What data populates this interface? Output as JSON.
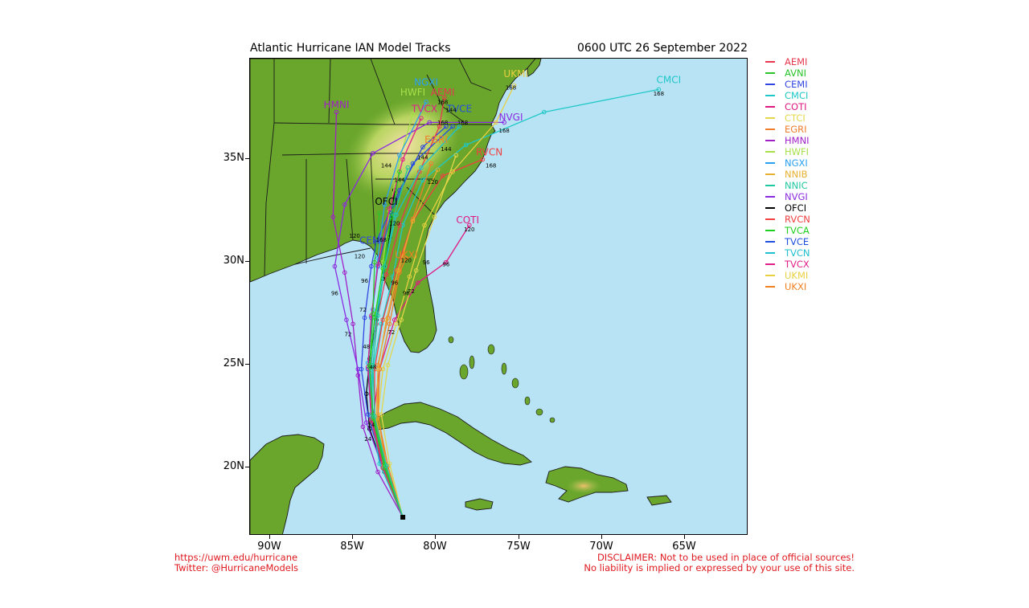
{
  "title": "Atlantic Hurricane IAN Model Tracks",
  "timestamp": "0600 UTC 26 September 2022",
  "axes": {
    "x_ticks": [
      "90W",
      "85W",
      "80W",
      "75W",
      "70W",
      "65W"
    ],
    "y_ticks": [
      "35N",
      "30N",
      "25N",
      "20N"
    ]
  },
  "legend": [
    {
      "name": "AEMI",
      "color": "#e8384f"
    },
    {
      "name": "AVNI",
      "color": "#2bc42b"
    },
    {
      "name": "CEMI",
      "color": "#3046e0"
    },
    {
      "name": "CMCI",
      "color": "#1fc8c8"
    },
    {
      "name": "COTI",
      "color": "#e01980"
    },
    {
      "name": "CTCI",
      "color": "#e3d84a"
    },
    {
      "name": "EGRI",
      "color": "#f07d2b"
    },
    {
      "name": "HMNI",
      "color": "#a020c8"
    },
    {
      "name": "HWFI",
      "color": "#a8e04a"
    },
    {
      "name": "NGXI",
      "color": "#2aa0f0"
    },
    {
      "name": "NNIB",
      "color": "#e8b030"
    },
    {
      "name": "NNIC",
      "color": "#1ec8a0"
    },
    {
      "name": "NVGI",
      "color": "#8a2be2"
    },
    {
      "name": "OFCI",
      "color": "#000000"
    },
    {
      "name": "RVCN",
      "color": "#f04040"
    },
    {
      "name": "TVCA",
      "color": "#20d020"
    },
    {
      "name": "TVCE",
      "color": "#2050e0"
    },
    {
      "name": "TVCN",
      "color": "#20c0d0"
    },
    {
      "name": "TVCX",
      "color": "#e0208a"
    },
    {
      "name": "UKMI",
      "color": "#e8d040"
    },
    {
      "name": "UKXI",
      "color": "#f08020"
    }
  ],
  "track_labels": [
    {
      "name": "HMNI",
      "color": "#a020c8",
      "lon": -85.8,
      "lat": 37.5
    },
    {
      "name": "NGXI",
      "color": "#2aa0f0",
      "lon": -80.4,
      "lat": 38.6
    },
    {
      "name": "AEMI",
      "color": "#e8384f",
      "lon": -79.4,
      "lat": 38.1
    },
    {
      "name": "HWFI",
      "color": "#a8e04a",
      "lon": -81.2,
      "lat": 38.1
    },
    {
      "name": "TVCX",
      "color": "#e0208a",
      "lon": -80.5,
      "lat": 37.3
    },
    {
      "name": "TVCE",
      "color": "#2050e0",
      "lon": -78.4,
      "lat": 37.3
    },
    {
      "name": "NVGI",
      "color": "#8a2be2",
      "lon": -75.3,
      "lat": 36.9
    },
    {
      "name": "CMCI",
      "color": "#1fc8c8",
      "lon": -65.8,
      "lat": 38.7
    },
    {
      "name": "UKMI",
      "color": "#e8d040",
      "lon": -75.0,
      "lat": 39.0
    },
    {
      "name": "EGRI",
      "color": "#f07d2b",
      "lon": -79.8,
      "lat": 35.8
    },
    {
      "name": "RVCN",
      "color": "#f04040",
      "lon": -76.6,
      "lat": 35.2
    },
    {
      "name": "OFCI",
      "color": "#000000",
      "lon": -82.8,
      "lat": 32.8
    },
    {
      "name": "COTI",
      "color": "#e01980",
      "lon": -77.9,
      "lat": 31.9
    },
    {
      "name": "CEMI",
      "color": "#3046e0",
      "lon": -83.7,
      "lat": 30.9
    },
    {
      "name": "UKXI",
      "color": "#f08020",
      "lon": -81.6,
      "lat": 30.2
    }
  ],
  "tracks": [
    {
      "name": "OFCI",
      "color": "#000000",
      "pts": [
        [
          -81.8,
          17.6
        ],
        [
          -82.9,
          19.8
        ],
        [
          -83.8,
          21.9
        ],
        [
          -84.0,
          23.6
        ],
        [
          -83.8,
          25.3
        ],
        [
          -83.4,
          27.2
        ],
        [
          -83.0,
          29.2
        ],
        [
          -82.6,
          31.2
        ],
        [
          -82.3,
          33.5
        ]
      ]
    },
    {
      "name": "HMNI",
      "color": "#a020c8",
      "pts": [
        [
          -81.8,
          17.6
        ],
        [
          -83.3,
          19.8
        ],
        [
          -84.2,
          22.0
        ],
        [
          -84.5,
          24.5
        ],
        [
          -84.8,
          27.0
        ],
        [
          -85.3,
          29.5
        ],
        [
          -86.0,
          32.2
        ],
        [
          -85.8,
          37.3
        ]
      ]
    },
    {
      "name": "NVGI",
      "color": "#8a2be2",
      "pts": [
        [
          -81.8,
          17.6
        ],
        [
          -83.0,
          20.0
        ],
        [
          -84.0,
          22.2
        ],
        [
          -84.5,
          24.8
        ],
        [
          -85.2,
          27.2
        ],
        [
          -85.9,
          29.8
        ],
        [
          -85.3,
          32.8
        ],
        [
          -83.6,
          35.3
        ],
        [
          -80.2,
          36.8
        ],
        [
          -75.7,
          36.8
        ]
      ]
    },
    {
      "name": "CEMI",
      "color": "#3046e0",
      "pts": [
        [
          -81.8,
          17.6
        ],
        [
          -83.1,
          20.3
        ],
        [
          -83.9,
          22.6
        ],
        [
          -84.3,
          24.8
        ],
        [
          -84.1,
          27.3
        ],
        [
          -83.7,
          29.8
        ],
        [
          -83.4,
          31.0
        ],
        [
          -82.0,
          33.5
        ],
        [
          -80.6,
          35.6
        ],
        [
          -79.2,
          36.6
        ]
      ]
    },
    {
      "name": "CMCI",
      "color": "#1fc8c8",
      "pts": [
        [
          -81.8,
          17.6
        ],
        [
          -83.2,
          20.2
        ],
        [
          -83.7,
          22.5
        ],
        [
          -83.6,
          24.8
        ],
        [
          -83.1,
          27.0
        ],
        [
          -82.4,
          29.3
        ],
        [
          -81.8,
          31.8
        ],
        [
          -80.6,
          34.0
        ],
        [
          -78.0,
          35.7
        ],
        [
          -73.3,
          37.3
        ],
        [
          -66.4,
          38.4
        ]
      ]
    },
    {
      "name": "COTI",
      "color": "#e01980",
      "pts": [
        [
          -81.8,
          17.6
        ],
        [
          -83.0,
          20.0
        ],
        [
          -83.6,
          22.4
        ],
        [
          -83.2,
          24.8
        ],
        [
          -82.3,
          27.2
        ],
        [
          -80.9,
          29.0
        ],
        [
          -79.2,
          30.0
        ],
        [
          -77.8,
          31.8
        ]
      ]
    },
    {
      "name": "AEMI",
      "color": "#e8384f",
      "pts": [
        [
          -81.8,
          17.6
        ],
        [
          -83.0,
          20.0
        ],
        [
          -83.7,
          22.3
        ],
        [
          -83.8,
          24.6
        ],
        [
          -83.4,
          27.0
        ],
        [
          -82.8,
          29.4
        ],
        [
          -82.0,
          31.8
        ],
        [
          -80.8,
          34.4
        ],
        [
          -79.6,
          36.6
        ],
        [
          -79.3,
          38.0
        ]
      ]
    },
    {
      "name": "HWFI",
      "color": "#a8e04a",
      "pts": [
        [
          -81.8,
          17.6
        ],
        [
          -82.9,
          20.1
        ],
        [
          -83.6,
          22.5
        ],
        [
          -83.7,
          25.0
        ],
        [
          -83.4,
          27.5
        ],
        [
          -83.0,
          30.0
        ],
        [
          -82.6,
          32.5
        ],
        [
          -82.0,
          35.0
        ],
        [
          -81.2,
          37.2
        ]
      ]
    },
    {
      "name": "NGXI",
      "color": "#2aa0f0",
      "pts": [
        [
          -81.8,
          17.6
        ],
        [
          -82.8,
          20.0
        ],
        [
          -83.6,
          22.7
        ],
        [
          -83.9,
          25.1
        ],
        [
          -83.6,
          27.7
        ],
        [
          -83.3,
          30.2
        ],
        [
          -82.9,
          32.8
        ],
        [
          -82.0,
          35.2
        ],
        [
          -80.4,
          37.8
        ]
      ]
    },
    {
      "name": "TVCE",
      "color": "#2050e0",
      "pts": [
        [
          -81.8,
          17.6
        ],
        [
          -82.9,
          20.0
        ],
        [
          -83.7,
          22.4
        ],
        [
          -83.9,
          24.8
        ],
        [
          -83.7,
          27.3
        ],
        [
          -83.3,
          29.8
        ],
        [
          -82.5,
          32.4
        ],
        [
          -81.2,
          34.8
        ],
        [
          -78.8,
          36.6
        ]
      ]
    },
    {
      "name": "TVCX",
      "color": "#e0208a",
      "pts": [
        [
          -81.8,
          17.6
        ],
        [
          -82.9,
          20.0
        ],
        [
          -83.7,
          22.4
        ],
        [
          -83.9,
          24.9
        ],
        [
          -83.7,
          27.4
        ],
        [
          -83.3,
          29.9
        ],
        [
          -82.6,
          32.6
        ],
        [
          -81.8,
          35.0
        ],
        [
          -80.7,
          37.0
        ]
      ]
    },
    {
      "name": "RVCN",
      "color": "#f04040",
      "pts": [
        [
          -81.8,
          17.6
        ],
        [
          -82.8,
          20.0
        ],
        [
          -83.5,
          22.3
        ],
        [
          -83.5,
          24.8
        ],
        [
          -83.0,
          27.2
        ],
        [
          -82.2,
          29.6
        ],
        [
          -81.2,
          32.0
        ],
        [
          -79.4,
          34.2
        ],
        [
          -77.0,
          35.0
        ]
      ]
    },
    {
      "name": "EGRI",
      "color": "#f07d2b",
      "pts": [
        [
          -81.8,
          17.6
        ],
        [
          -82.8,
          20.1
        ],
        [
          -83.3,
          22.6
        ],
        [
          -83.3,
          25.0
        ],
        [
          -82.7,
          27.3
        ],
        [
          -82.0,
          29.6
        ],
        [
          -81.2,
          32.1
        ],
        [
          -80.1,
          34.8
        ]
      ]
    },
    {
      "name": "UKMI",
      "color": "#e8d040",
      "pts": [
        [
          -81.8,
          17.6
        ],
        [
          -82.7,
          20.1
        ],
        [
          -83.3,
          22.5
        ],
        [
          -83.0,
          24.8
        ],
        [
          -82.2,
          27.0
        ],
        [
          -81.4,
          29.3
        ],
        [
          -80.5,
          31.8
        ],
        [
          -78.8,
          34.4
        ],
        [
          -76.2,
          36.8
        ],
        [
          -75.1,
          38.6
        ]
      ]
    },
    {
      "name": "UKXI",
      "color": "#f08020",
      "pts": [
        [
          -81.8,
          17.6
        ],
        [
          -82.7,
          20.1
        ],
        [
          -83.3,
          22.5
        ],
        [
          -83.2,
          24.8
        ],
        [
          -82.6,
          27.0
        ],
        [
          -82.0,
          29.5
        ],
        [
          -81.6,
          30.2
        ]
      ]
    },
    {
      "name": "CTCI",
      "color": "#e3d84a",
      "pts": [
        [
          -81.8,
          17.6
        ],
        [
          -82.6,
          20.2
        ],
        [
          -83.1,
          22.6
        ],
        [
          -82.7,
          25.0
        ],
        [
          -81.9,
          27.2
        ],
        [
          -81.0,
          29.6
        ],
        [
          -79.9,
          32.2
        ],
        [
          -78.6,
          35.2
        ]
      ]
    },
    {
      "name": "NNIB",
      "color": "#e8b030",
      "pts": [
        [
          -81.8,
          17.6
        ],
        [
          -82.8,
          20.1
        ],
        [
          -83.4,
          22.4
        ],
        [
          -83.3,
          24.8
        ],
        [
          -82.8,
          27.2
        ],
        [
          -82.1,
          29.6
        ],
        [
          -81.2,
          32.0
        ],
        [
          -79.7,
          34.5
        ]
      ]
    },
    {
      "name": "TVCN",
      "color": "#20c0d0",
      "pts": [
        [
          -81.8,
          17.6
        ],
        [
          -82.8,
          20.1
        ],
        [
          -83.6,
          22.5
        ],
        [
          -83.7,
          25.0
        ],
        [
          -83.4,
          27.4
        ],
        [
          -82.9,
          29.8
        ],
        [
          -82.2,
          32.3
        ],
        [
          -80.7,
          34.6
        ],
        [
          -78.4,
          36.6
        ]
      ]
    },
    {
      "name": "TVCA",
      "color": "#20d020",
      "pts": [
        [
          -81.8,
          17.6
        ],
        [
          -82.9,
          20.0
        ],
        [
          -83.6,
          22.4
        ],
        [
          -83.8,
          24.9
        ],
        [
          -83.5,
          27.3
        ],
        [
          -83.0,
          29.7
        ],
        [
          -82.5,
          32.2
        ],
        [
          -82.0,
          34.4
        ]
      ]
    },
    {
      "name": "AVNI",
      "color": "#2bc42b",
      "pts": [
        [
          -81.8,
          17.6
        ],
        [
          -82.9,
          20.2
        ],
        [
          -83.6,
          22.6
        ],
        [
          -83.8,
          25.0
        ],
        [
          -83.6,
          27.5
        ],
        [
          -83.5,
          30.0
        ],
        [
          -83.2,
          32.4
        ]
      ]
    },
    {
      "name": "NNIC",
      "color": "#1ec8a0",
      "pts": [
        [
          -81.8,
          17.6
        ],
        [
          -82.8,
          20.1
        ],
        [
          -83.5,
          22.5
        ],
        [
          -83.6,
          25.0
        ],
        [
          -83.3,
          27.4
        ],
        [
          -82.9,
          29.8
        ],
        [
          -82.3,
          32.3
        ],
        [
          -81.5,
          34.6
        ]
      ]
    }
  ],
  "hour_labels": [
    {
      "text": "168",
      "lon": -66.4,
      "lat": 38.1
    },
    {
      "text": "168",
      "lon": -75.3,
      "lat": 38.4
    },
    {
      "text": "168",
      "lon": -79.4,
      "lat": 37.7
    },
    {
      "text": "168",
      "lon": -78.2,
      "lat": 36.7
    },
    {
      "text": "168",
      "lon": -79.4,
      "lat": 36.7
    },
    {
      "text": "168",
      "lon": -75.7,
      "lat": 36.3
    },
    {
      "text": "168",
      "lon": -76.5,
      "lat": 34.6
    },
    {
      "text": "144",
      "lon": -78.9,
      "lat": 37.3
    },
    {
      "text": "144",
      "lon": -79.2,
      "lat": 35.4
    },
    {
      "text": "144",
      "lon": -82.0,
      "lat": 33.9
    },
    {
      "text": "144",
      "lon": -82.8,
      "lat": 34.6
    },
    {
      "text": "144",
      "lon": -80.6,
      "lat": 35.0
    },
    {
      "text": "120",
      "lon": -77.8,
      "lat": 31.5
    },
    {
      "text": "120",
      "lon": -84.7,
      "lat": 31.2
    },
    {
      "text": "120",
      "lon": -84.4,
      "lat": 30.2
    },
    {
      "text": "120",
      "lon": -82.3,
      "lat": 31.8
    },
    {
      "text": "120",
      "lon": -81.6,
      "lat": 30.0
    },
    {
      "text": "120",
      "lon": -80.0,
      "lat": 33.8
    },
    {
      "text": "168",
      "lon": -83.1,
      "lat": 31.0
    },
    {
      "text": "96",
      "lon": -79.2,
      "lat": 29.8
    },
    {
      "text": "96",
      "lon": -80.4,
      "lat": 29.9
    },
    {
      "text": "96",
      "lon": -84.1,
      "lat": 29.0
    },
    {
      "text": "96",
      "lon": -82.3,
      "lat": 28.9
    },
    {
      "text": "96",
      "lon": -81.6,
      "lat": 28.4
    },
    {
      "text": "96",
      "lon": -85.9,
      "lat": 28.4
    },
    {
      "text": "72",
      "lon": -81.3,
      "lat": 28.5
    },
    {
      "text": "72",
      "lon": -84.2,
      "lat": 27.6
    },
    {
      "text": "72",
      "lon": -85.1,
      "lat": 26.4
    },
    {
      "text": "72",
      "lon": -82.5,
      "lat": 26.5
    },
    {
      "text": "48",
      "lon": -83.6,
      "lat": 24.8
    },
    {
      "text": "48",
      "lon": -84.0,
      "lat": 25.8
    },
    {
      "text": "24",
      "lon": -83.7,
      "lat": 22.0
    },
    {
      "text": "24",
      "lon": -83.9,
      "lat": 21.3
    }
  ],
  "storm_start": {
    "lon": -81.8,
    "lat": 17.6
  },
  "colors": {
    "ocean": "#b8e3f5",
    "land_low": "#6aa52c",
    "land_mid": "#9cc848",
    "land_high": "#f0e0a0",
    "border": "#1a1a1a"
  },
  "footer": {
    "site": "https://uwm.edu/hurricane",
    "twitter": "Twitter: @HurricaneModels",
    "disclaimer1": "DISCLAIMER: Not to be used in place of official sources!",
    "disclaimer2": "No liability is implied or expressed by your use of this site."
  }
}
